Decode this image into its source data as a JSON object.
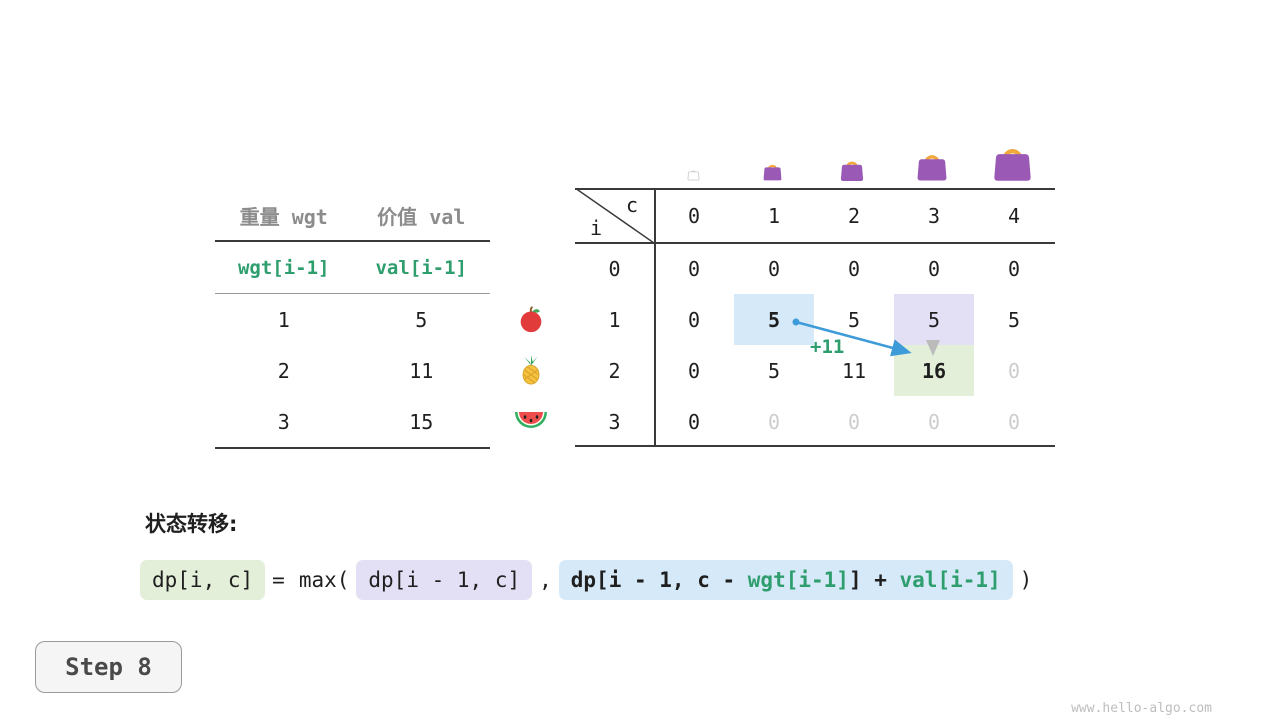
{
  "item_table": {
    "headers": [
      "重量 wgt",
      "价值 val"
    ],
    "formula_row": [
      "wgt[i-1]",
      "val[i-1]"
    ],
    "rows": [
      [
        "1",
        "5"
      ],
      [
        "2",
        "11"
      ],
      [
        "3",
        "15"
      ]
    ]
  },
  "dp_table": {
    "corner": {
      "col": "c",
      "row": "i"
    },
    "col_headers": [
      "0",
      "1",
      "2",
      "3",
      "4"
    ],
    "row_headers": [
      "0",
      "1",
      "2",
      "3"
    ],
    "values": [
      [
        "0",
        "0",
        "0",
        "0",
        "0"
      ],
      [
        "0",
        "5",
        "5",
        "5",
        "5"
      ],
      [
        "0",
        "5",
        "11",
        "16",
        "0"
      ],
      [
        "0",
        "0",
        "0",
        "0",
        "0"
      ]
    ],
    "cell_classes": [
      [
        "",
        "",
        "",
        "",
        ""
      ],
      [
        "",
        "bold hl-blue",
        "",
        "hl-purple",
        ""
      ],
      [
        "",
        "",
        "",
        "bold hl-green",
        "dim"
      ],
      [
        "",
        "dim",
        "dim",
        "dim",
        "dim"
      ]
    ],
    "arrow_label": "+11"
  },
  "transition": {
    "label": "状态转移:",
    "lhs": "dp[i, c]",
    "eq": "=",
    "max_open": "max(",
    "option1": "dp[i - 1, c]",
    "comma": ",",
    "option2_prefix": "dp[i - 1, c - ",
    "option2_wgt": "wgt[i-1]",
    "option2_infix": "] + ",
    "option2_val": "val[i-1]",
    "close": ")"
  },
  "step_label": "Step 8",
  "watermark": "www.hello-algo.com",
  "colors": {
    "green_text": "#2f9e6e",
    "highlight_blue": "#d6e9f8",
    "highlight_purple": "#e3e0f5",
    "highlight_green": "#e3efd9",
    "arrow_blue": "#3d9bd9",
    "dim_text": "#cdcdcd",
    "bag_purple": "#9b59b6",
    "bag_handle": "#f2a93b"
  }
}
